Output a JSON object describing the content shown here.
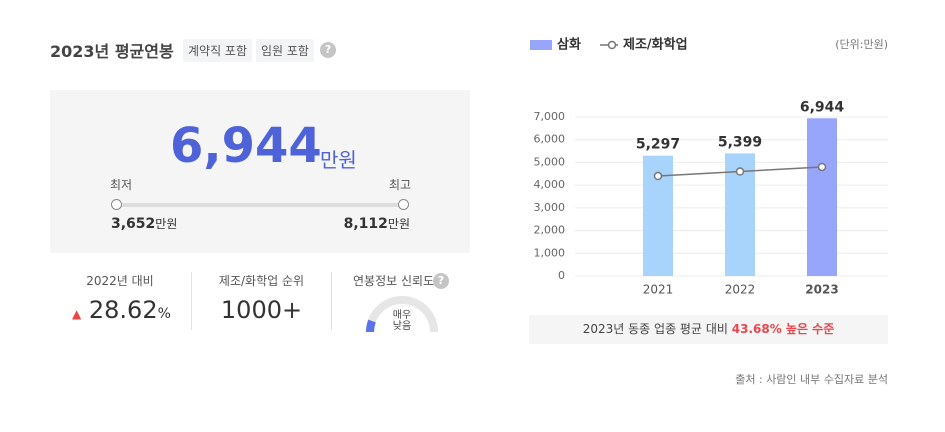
{
  "header": {
    "title": "2023년 평균연봉",
    "tags": [
      "계약직 포함",
      "임원 포함"
    ],
    "help": "?"
  },
  "summary": {
    "average": "6,944",
    "average_unit": "만원",
    "min_label": "최저",
    "max_label": "최고",
    "min": "3,652",
    "min_unit": "만원",
    "max": "8,112",
    "max_unit": "만원"
  },
  "stats": [
    {
      "label": "2022년 대비",
      "value": "28.62",
      "unit": "%"
    },
    {
      "label": "제조/화학업 순위",
      "value": "1000+"
    },
    {
      "label": "연봉정보 신뢰도",
      "help": "?",
      "gauge_text": "매우 낮음"
    }
  ],
  "chart_data": {
    "type": "bar",
    "unit_label": "(단위:만원)",
    "categories": [
      "2021",
      "2022",
      "2023"
    ],
    "series": [
      {
        "name": "삼화",
        "type": "bar",
        "color": "#97a5fb",
        "colors": [
          "#a8d4fb",
          "#a8d4fb",
          "#97a5fb"
        ],
        "values": [
          5297,
          5399,
          6944
        ],
        "value_labels": [
          "5,297",
          "5,399",
          "6,944"
        ]
      },
      {
        "name": "제조/화학업",
        "type": "line",
        "color": "#777777",
        "values": [
          4400,
          4600,
          4800
        ]
      }
    ],
    "ylim": [
      0,
      7000
    ],
    "yticks": [
      0,
      {
        "value": 1000,
        "label": "1,000"
      },
      {
        "value": 2000,
        "label": "2,000"
      },
      {
        "value": 3000,
        "label": "3,000"
      },
      {
        "value": 4000,
        "label": "4,000"
      },
      {
        "value": 5000,
        "label": "5,000"
      },
      {
        "value": 6000,
        "label": "6,000"
      },
      {
        "value": 7000,
        "label": "7,000"
      }
    ],
    "grid": true
  },
  "footnote": {
    "text": "2023년 동종 업종 평균 대비",
    "highlight": "43.68% 높은 수준"
  },
  "source": "출처 : 사람인 내부 수집자료 분석"
}
